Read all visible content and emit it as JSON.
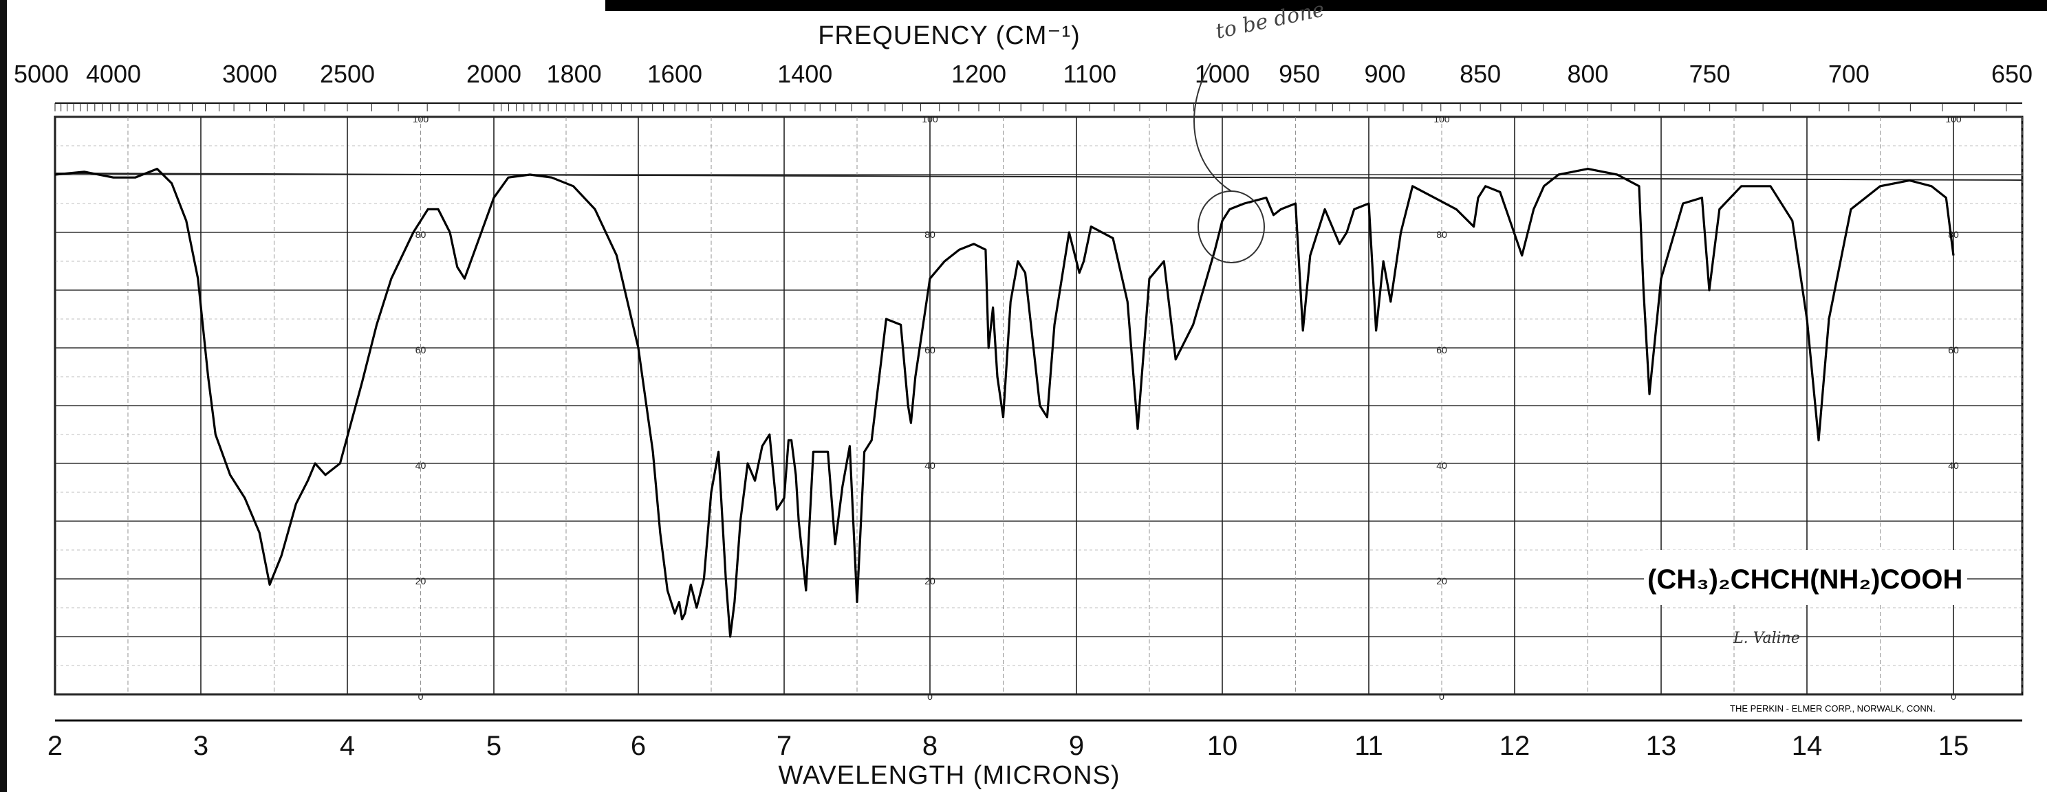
{
  "chart_data": {
    "type": "line",
    "xlabel": "WAVELENGTH (MICRONS)",
    "x2label": "FREQUENCY (CM⁻¹)",
    "xlim": [
      2,
      15.5
    ],
    "ylim": [
      0,
      100
    ],
    "grid": true,
    "bottom_ticks": [
      "2",
      "3",
      "4",
      "5",
      "6",
      "7",
      "8",
      "9",
      "10",
      "11",
      "12",
      "13",
      "14",
      "15"
    ],
    "top_ticks": [
      "5000",
      "4000",
      "3000",
      "2500",
      "2000",
      "1800",
      "1600",
      "1400",
      "1200",
      "1100",
      "1000",
      "950",
      "900",
      "850",
      "800",
      "750",
      "700",
      "650"
    ],
    "pct_labels": [
      "100",
      "80",
      "60",
      "40",
      "20",
      "0"
    ],
    "series": [
      {
        "x": [
          2.0,
          2.2,
          2.4,
          2.55,
          2.7,
          2.8,
          2.9,
          2.98,
          3.05,
          3.1,
          3.2,
          3.3,
          3.4,
          3.47,
          3.55,
          3.65,
          3.73,
          3.78,
          3.85,
          3.95,
          4.1,
          4.2,
          4.3,
          4.45,
          4.5,
          4.55,
          4.62,
          4.7,
          4.75,
          4.8,
          4.9,
          5.0,
          5.1,
          5.25,
          5.4,
          5.55,
          5.7,
          5.85,
          6.0,
          6.1,
          6.15,
          6.2,
          6.25,
          6.28,
          6.3,
          6.32,
          6.36,
          6.4,
          6.45,
          6.5,
          6.55,
          6.6,
          6.63,
          6.66,
          6.7,
          6.75,
          6.8,
          6.85,
          6.9,
          6.95,
          7.0,
          7.03,
          7.05,
          7.08,
          7.1,
          7.15,
          7.2,
          7.3,
          7.35,
          7.4,
          7.45,
          7.5,
          7.55,
          7.6,
          7.7,
          7.8,
          7.85,
          7.87,
          7.9,
          8.0,
          8.1,
          8.2,
          8.3,
          8.38,
          8.4,
          8.43,
          8.46,
          8.5,
          8.55,
          8.6,
          8.65,
          8.75,
          8.8,
          8.85,
          8.95,
          9.02,
          9.05,
          9.1,
          9.25,
          9.35,
          9.42,
          9.5,
          9.6,
          9.68,
          9.8,
          9.95,
          10.0,
          10.05,
          10.15,
          10.3,
          10.35,
          10.4,
          10.5,
          10.55,
          10.6,
          10.7,
          10.8,
          10.85,
          10.9,
          11.0,
          11.05,
          11.1,
          11.15,
          11.22,
          11.3,
          11.45,
          11.6,
          11.72,
          11.75,
          11.8,
          11.9,
          12.05,
          12.13,
          12.2,
          12.3,
          12.5,
          12.7,
          12.85,
          12.88,
          12.92,
          13.0,
          13.15,
          13.28,
          13.33,
          13.4,
          13.55,
          13.75,
          13.9,
          14.0,
          14.08,
          14.15,
          14.3,
          14.5,
          14.7,
          14.85,
          14.95,
          15.0
        ],
        "y": [
          90,
          90.5,
          89.5,
          89.5,
          91,
          88.5,
          82,
          72,
          55,
          45,
          38,
          34,
          28,
          19,
          24,
          33,
          37,
          40,
          38,
          40,
          54,
          64,
          72,
          80,
          82,
          84,
          84,
          80,
          74,
          72,
          79,
          86,
          89.5,
          90,
          89.5,
          88,
          84,
          76,
          60,
          42,
          28,
          18,
          14,
          16,
          13,
          14,
          19,
          15,
          20,
          35,
          42,
          20,
          10,
          16,
          30,
          40,
          37,
          43,
          45,
          32,
          34,
          44,
          44,
          38,
          30,
          18,
          42,
          42,
          26,
          36,
          43,
          16,
          42,
          44,
          65,
          64,
          50,
          47,
          55,
          72,
          75,
          77,
          78,
          77,
          60,
          67,
          55,
          48,
          68,
          75,
          73,
          50,
          48,
          64,
          80,
          73,
          75,
          81,
          79,
          68,
          46,
          72,
          75,
          58,
          64,
          77,
          82,
          84,
          85,
          86,
          83,
          84,
          85,
          63,
          76,
          84,
          78,
          80,
          84,
          85,
          63,
          75,
          68,
          80,
          88,
          86,
          84,
          81,
          86,
          88,
          87,
          76,
          84,
          88,
          90,
          91,
          90,
          88,
          70,
          52,
          72,
          85,
          86,
          70,
          84,
          88,
          88,
          82,
          65,
          44,
          65,
          84,
          88,
          89,
          88,
          86,
          76
        ]
      }
    ],
    "annotation": "(CH₃)₂CHCH(NH₂)COOH",
    "corp_label": "THE PERKIN - ELMER CORP., NORWALK, CONN.",
    "handwritten_note": "to be done",
    "handwritten_initial": "L. Valine"
  }
}
